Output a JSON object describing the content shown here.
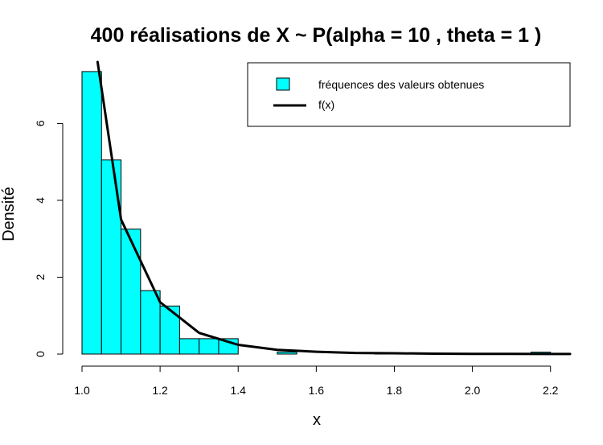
{
  "chart_data": {
    "type": "bar",
    "title": "400  réalisations de X ~ P(alpha =  10 , theta =  1 )",
    "xlabel": "x",
    "ylabel": "Densité",
    "xlim": [
      1.0,
      2.25
    ],
    "ylim": [
      0,
      7.6
    ],
    "grid": false,
    "legend_position": "top-right",
    "x_ticks": [
      1.0,
      1.2,
      1.4,
      1.6,
      1.8,
      2.0,
      2.2
    ],
    "x_tick_labels": [
      "1.0",
      "1.2",
      "1.4",
      "1.6",
      "1.8",
      "2.0",
      "2.2"
    ],
    "y_ticks": [
      0,
      2,
      4,
      6
    ],
    "y_tick_labels": [
      "0",
      "2",
      "4",
      "6"
    ],
    "bin_width": 0.05,
    "bins": [
      {
        "x0": 1.0,
        "x1": 1.05,
        "density": 7.35
      },
      {
        "x0": 1.05,
        "x1": 1.1,
        "density": 5.05
      },
      {
        "x0": 1.1,
        "x1": 1.15,
        "density": 3.25
      },
      {
        "x0": 1.15,
        "x1": 1.2,
        "density": 1.65
      },
      {
        "x0": 1.2,
        "x1": 1.25,
        "density": 1.25
      },
      {
        "x0": 1.25,
        "x1": 1.3,
        "density": 0.4
      },
      {
        "x0": 1.3,
        "x1": 1.35,
        "density": 0.4
      },
      {
        "x0": 1.35,
        "x1": 1.4,
        "density": 0.4
      },
      {
        "x0": 1.4,
        "x1": 1.45,
        "density": 0.0
      },
      {
        "x0": 1.45,
        "x1": 1.5,
        "density": 0.0
      },
      {
        "x0": 1.5,
        "x1": 1.55,
        "density": 0.05
      },
      {
        "x0": 1.55,
        "x1": 1.6,
        "density": 0.0
      },
      {
        "x0": 1.6,
        "x1": 1.65,
        "density": 0.0
      },
      {
        "x0": 1.65,
        "x1": 1.7,
        "density": 0.0
      },
      {
        "x0": 1.7,
        "x1": 1.75,
        "density": 0.0
      },
      {
        "x0": 1.75,
        "x1": 1.8,
        "density": 0.02
      },
      {
        "x0": 1.8,
        "x1": 1.85,
        "density": 0.0
      },
      {
        "x0": 1.85,
        "x1": 1.9,
        "density": 0.02
      },
      {
        "x0": 1.9,
        "x1": 1.95,
        "density": 0.02
      },
      {
        "x0": 1.95,
        "x1": 2.0,
        "density": 0.0
      },
      {
        "x0": 2.0,
        "x1": 2.05,
        "density": 0.0
      },
      {
        "x0": 2.05,
        "x1": 2.1,
        "density": 0.0
      },
      {
        "x0": 2.1,
        "x1": 2.15,
        "density": 0.0
      },
      {
        "x0": 2.15,
        "x1": 2.2,
        "density": 0.05
      }
    ],
    "series": [
      {
        "name": "f(x)",
        "kind": "line",
        "color": "#000000",
        "x": [
          1.04,
          1.1,
          1.2,
          1.3,
          1.4,
          1.5,
          1.6,
          1.7,
          1.8,
          1.9,
          2.0,
          2.1,
          2.2,
          2.25
        ],
        "y": [
          7.6,
          3.5,
          1.35,
          0.55,
          0.24,
          0.11,
          0.06,
          0.03,
          0.02,
          0.01,
          0.007,
          0.005,
          0.003,
          0.002
        ]
      }
    ],
    "legend": [
      {
        "label": "fréquences des valeurs obtenues",
        "kind": "box",
        "color": "#00ffff"
      },
      {
        "label": "f(x)",
        "kind": "line",
        "color": "#000000"
      }
    ],
    "colors": {
      "bar_fill": "#00ffff",
      "bar_stroke": "#000000",
      "line": "#000000"
    }
  }
}
